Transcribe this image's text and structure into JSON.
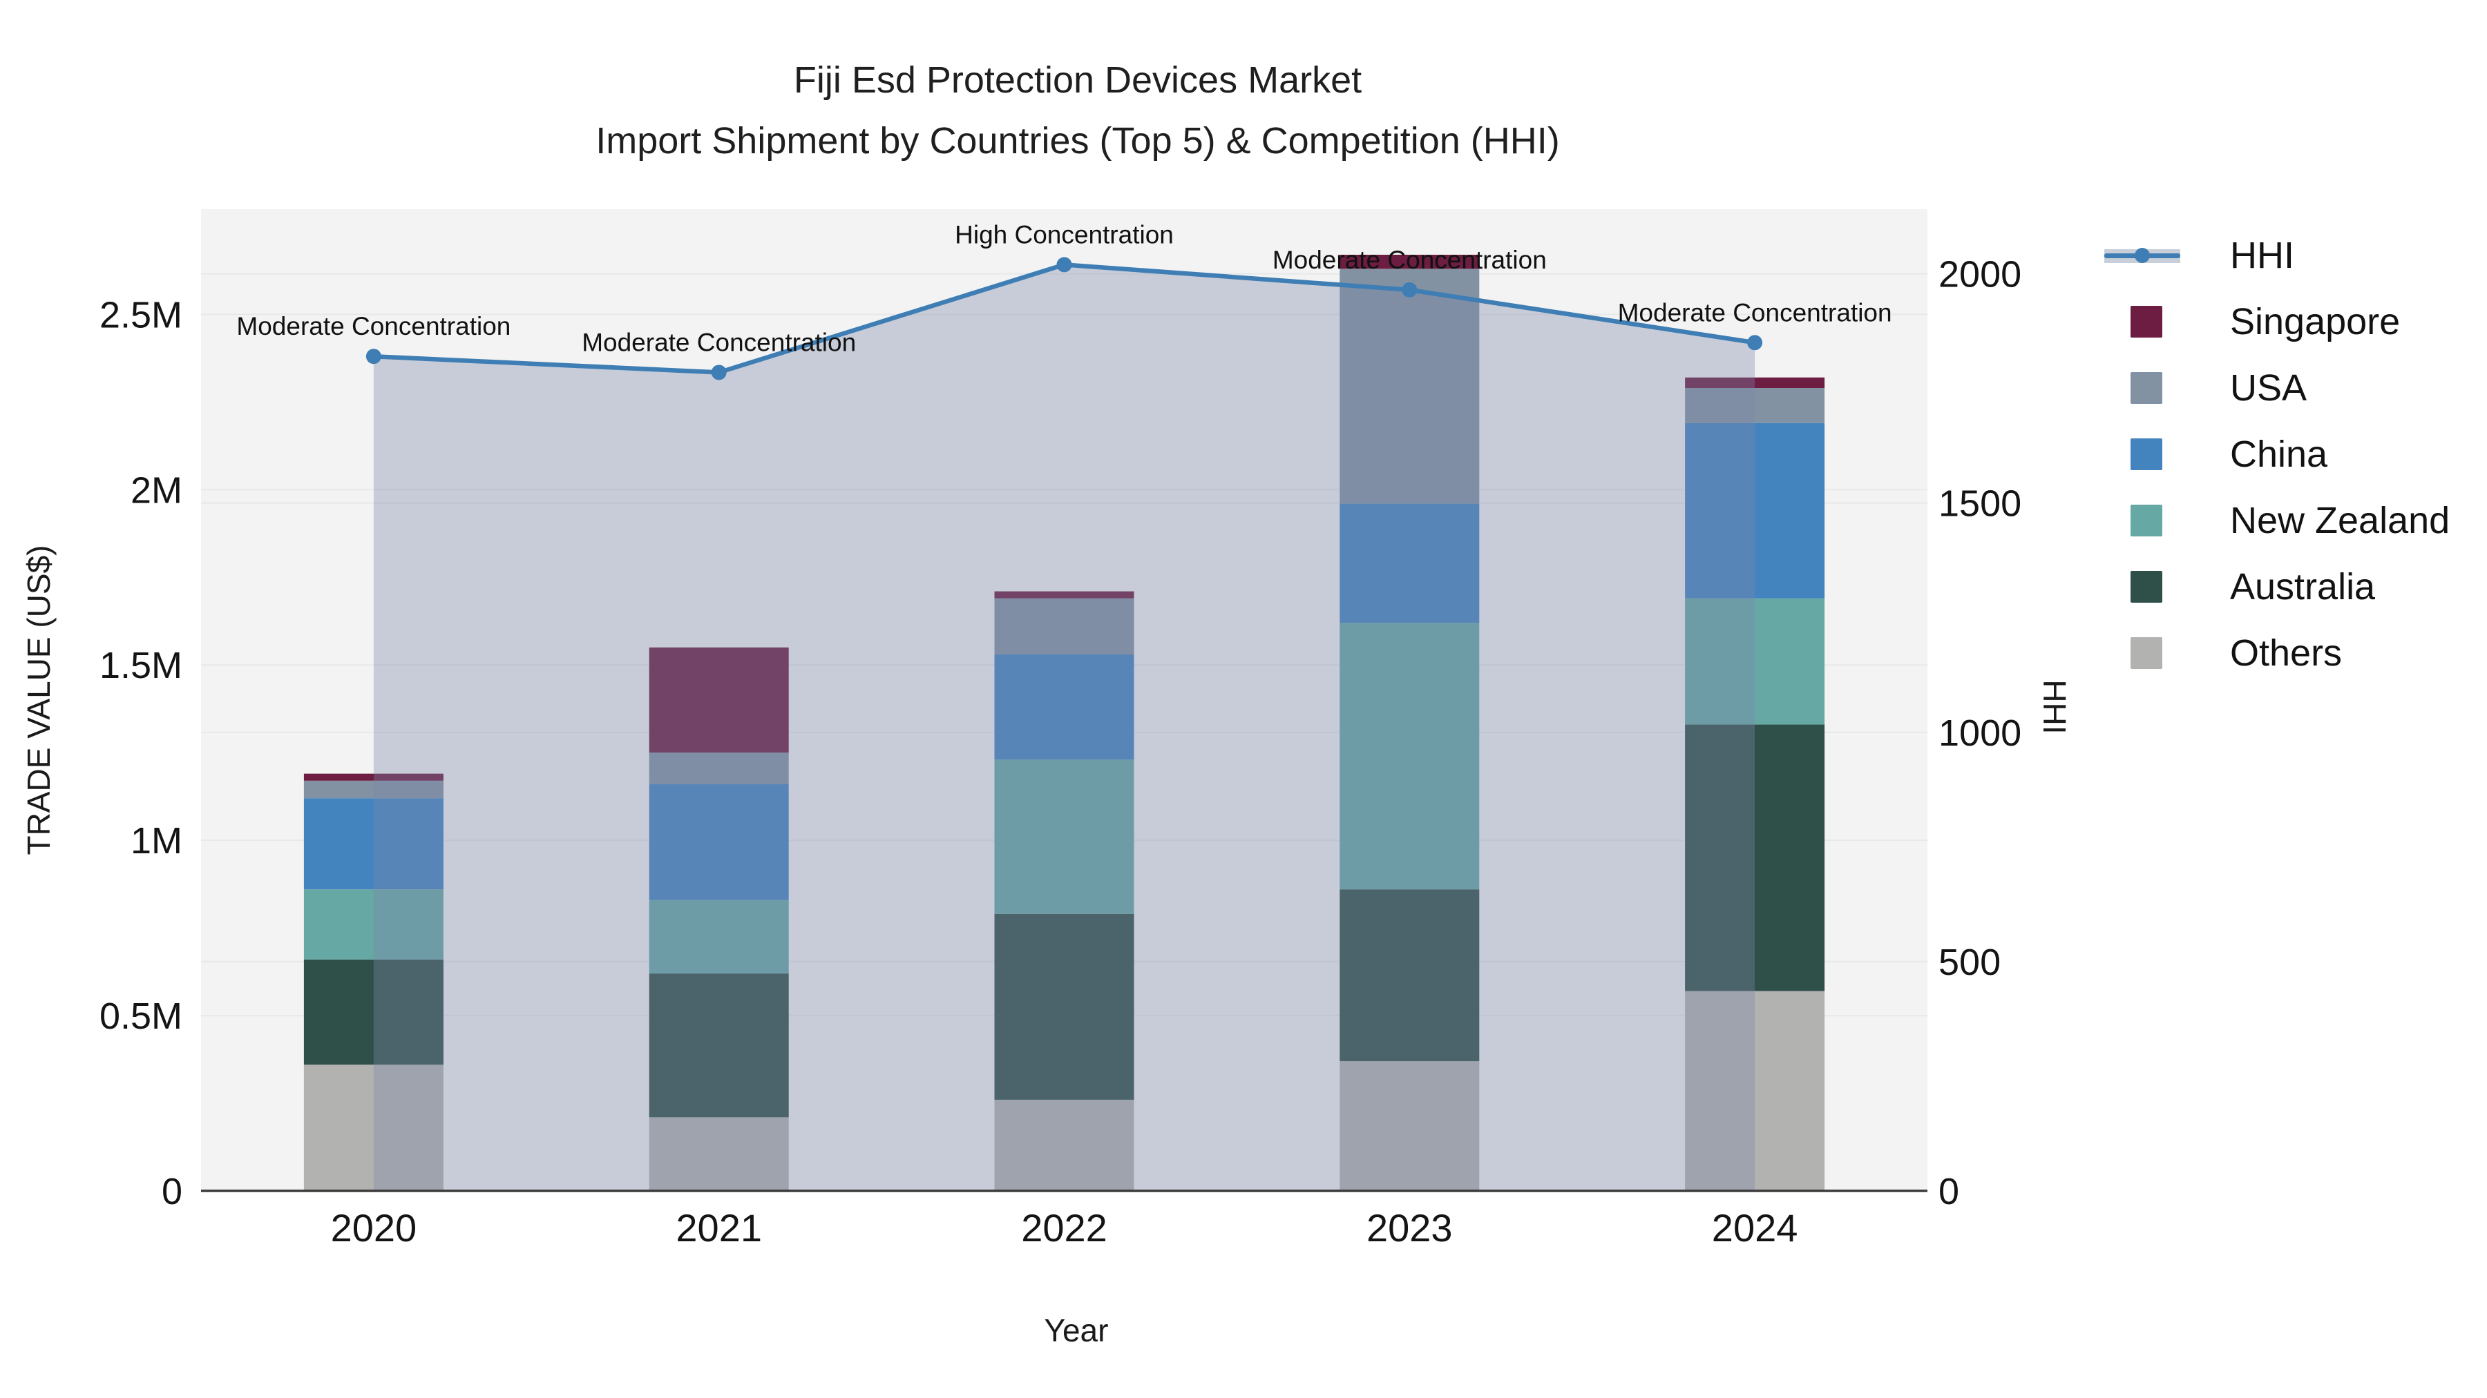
{
  "title": {
    "line1": "Fiji Esd Protection Devices Market",
    "line2": "Import Shipment by Countries (Top 5) & Competition (HHI)"
  },
  "axes": {
    "x": {
      "label": "Year",
      "tick_labels": [
        "2020",
        "2021",
        "2022",
        "2023",
        "2024"
      ]
    },
    "y_left": {
      "label": "TRADE VALUE (US$)",
      "ticks": [
        {
          "value": 0,
          "label": "0"
        },
        {
          "value": 0.5,
          "label": "0.5M"
        },
        {
          "value": 1,
          "label": "1M"
        },
        {
          "value": 1.5,
          "label": "1.5M"
        },
        {
          "value": 2,
          "label": "2M"
        },
        {
          "value": 2.5,
          "label": "2.5M"
        }
      ],
      "axis_max": 2.8
    },
    "y_right": {
      "label": "HHI",
      "ticks": [
        {
          "value": 0,
          "label": "0"
        },
        {
          "value": 500,
          "label": "500"
        },
        {
          "value": 1000,
          "label": "1000"
        },
        {
          "value": 1500,
          "label": "1500"
        },
        {
          "value": 2000,
          "label": "2000"
        }
      ],
      "axis_max": 2141
    }
  },
  "chart_data": {
    "type": "stacked-bar+line",
    "categories": [
      "2020",
      "2021",
      "2022",
      "2023",
      "2024"
    ],
    "value_unit": "M US$ (trade value, left axis)",
    "series": [
      {
        "name": "Others",
        "color": "#b2b3b0",
        "values": [
          0.36,
          0.21,
          0.26,
          0.37,
          0.57
        ]
      },
      {
        "name": "Australia",
        "color": "#2f4f49",
        "values": [
          0.3,
          0.41,
          0.53,
          0.49,
          0.76
        ]
      },
      {
        "name": "New Zealand",
        "color": "#66a8a4",
        "values": [
          0.2,
          0.21,
          0.44,
          0.76,
          0.36
        ]
      },
      {
        "name": "China",
        "color": "#4384bf",
        "values": [
          0.26,
          0.33,
          0.3,
          0.34,
          0.5
        ]
      },
      {
        "name": "USA",
        "color": "#8292a3",
        "values": [
          0.05,
          0.09,
          0.16,
          0.67,
          0.1
        ]
      },
      {
        "name": "Singapore",
        "color": "#6c1d41",
        "values": [
          0.02,
          0.3,
          0.02,
          0.04,
          0.03
        ]
      }
    ],
    "bar_totals": [
      1.19,
      1.55,
      1.71,
      2.67,
      2.32
    ],
    "line_series": {
      "name": "HHI",
      "axis": "right",
      "color": "#3e7eb4",
      "area_fill": "rgba(124,137,170,0.36)",
      "values": [
        1820,
        1785,
        2020,
        1965,
        1850
      ],
      "annotations": [
        "Moderate Concentration",
        "Moderate Concentration",
        "High Concentration",
        "Moderate Concentration",
        "Moderate Concentration"
      ]
    },
    "layout_hints": {
      "plot_background": "#f2f3f2",
      "gridline_color": "#e7e8e9",
      "baseline_color": "#3b3b3b",
      "grid": "on",
      "legend_position": "right"
    }
  },
  "legend": {
    "items": [
      {
        "label": "HHI",
        "type": "line",
        "color": "#3e7eb4"
      },
      {
        "label": "Singapore",
        "type": "swatch",
        "color": "#6c1d41"
      },
      {
        "label": "USA",
        "type": "swatch",
        "color": "#8292a3"
      },
      {
        "label": "China",
        "type": "swatch",
        "color": "#4384bf"
      },
      {
        "label": "New Zealand",
        "type": "swatch",
        "color": "#66a8a4"
      },
      {
        "label": "Australia",
        "type": "swatch",
        "color": "#2f4f49"
      },
      {
        "label": "Others",
        "type": "swatch",
        "color": "#b2b3b0"
      }
    ]
  }
}
